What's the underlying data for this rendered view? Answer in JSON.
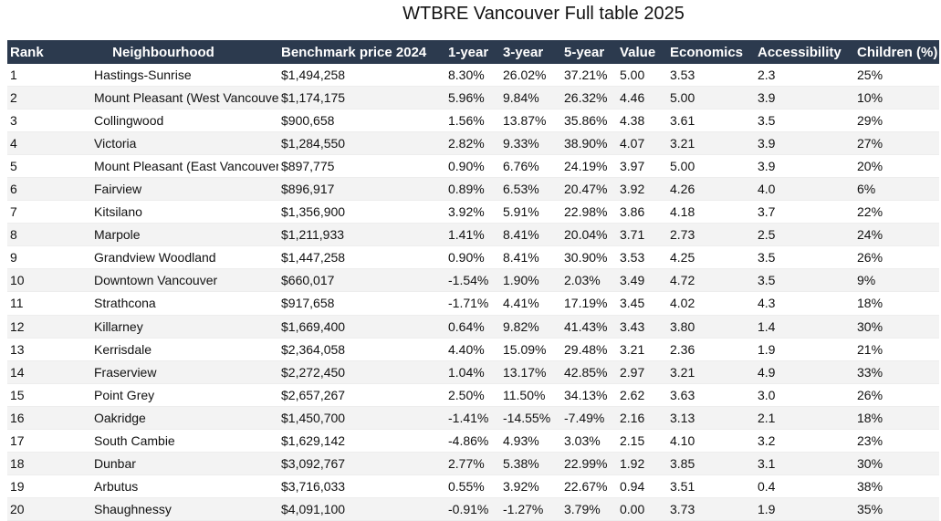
{
  "title": "WTBRE Vancouver Full table 2025",
  "columns": [
    "Rank",
    "Neighbourhood",
    "Benchmark price 2024",
    "1-year",
    "3-year",
    "5-year",
    "Value",
    "Economics",
    "Accessibility",
    "Children (%)"
  ],
  "rows": [
    [
      "1",
      "Hastings-Sunrise",
      "$1,494,258",
      "8.30%",
      "26.02%",
      "37.21%",
      "5.00",
      "3.53",
      "2.3",
      "25%"
    ],
    [
      "2",
      "Mount Pleasant (West Vancouver)",
      "$1,174,175",
      "5.96%",
      "9.84%",
      "26.32%",
      "4.46",
      "5.00",
      "3.9",
      "10%"
    ],
    [
      "3",
      "Collingwood",
      "$900,658",
      "1.56%",
      "13.87%",
      "35.86%",
      "4.38",
      "3.61",
      "3.5",
      "29%"
    ],
    [
      "4",
      "Victoria",
      "$1,284,550",
      "2.82%",
      "9.33%",
      "38.90%",
      "4.07",
      "3.21",
      "3.9",
      "27%"
    ],
    [
      "5",
      "Mount Pleasant (East Vancouver)",
      "$897,775",
      "0.90%",
      "6.76%",
      "24.19%",
      "3.97",
      "5.00",
      "3.9",
      "20%"
    ],
    [
      "6",
      "Fairview",
      "$896,917",
      "0.89%",
      "6.53%",
      "20.47%",
      "3.92",
      "4.26",
      "4.0",
      "6%"
    ],
    [
      "7",
      "Kitsilano",
      "$1,356,900",
      "3.92%",
      "5.91%",
      "22.98%",
      "3.86",
      "4.18",
      "3.7",
      "22%"
    ],
    [
      "8",
      "Marpole",
      "$1,211,933",
      "1.41%",
      "8.41%",
      "20.04%",
      "3.71",
      "2.73",
      "2.5",
      "24%"
    ],
    [
      "9",
      "Grandview Woodland",
      "$1,447,258",
      "0.90%",
      "8.41%",
      "30.90%",
      "3.53",
      "4.25",
      "3.5",
      "26%"
    ],
    [
      "10",
      "Downtown Vancouver",
      "$660,017",
      "-1.54%",
      "1.90%",
      "2.03%",
      "3.49",
      "4.72",
      "3.5",
      "9%"
    ],
    [
      "11",
      "Strathcona",
      "$917,658",
      "-1.71%",
      "4.41%",
      "17.19%",
      "3.45",
      "4.02",
      "4.3",
      "18%"
    ],
    [
      "12",
      "Killarney",
      "$1,669,400",
      "0.64%",
      "9.82%",
      "41.43%",
      "3.43",
      "3.80",
      "1.4",
      "30%"
    ],
    [
      "13",
      "Kerrisdale",
      "$2,364,058",
      "4.40%",
      "15.09%",
      "29.48%",
      "3.21",
      "2.36",
      "1.9",
      "21%"
    ],
    [
      "14",
      "Fraserview",
      "$2,272,450",
      "1.04%",
      "13.17%",
      "42.85%",
      "2.97",
      "3.21",
      "4.9",
      "33%"
    ],
    [
      "15",
      "Point Grey",
      "$2,657,267",
      "2.50%",
      "11.50%",
      "34.13%",
      "2.62",
      "3.63",
      "3.0",
      "26%"
    ],
    [
      "16",
      "Oakridge",
      "$1,450,700",
      "-1.41%",
      "-14.55%",
      "-7.49%",
      "2.16",
      "3.13",
      "2.1",
      "18%"
    ],
    [
      "17",
      "South Cambie",
      "$1,629,142",
      "-4.86%",
      "4.93%",
      "3.03%",
      "2.15",
      "4.10",
      "3.2",
      "23%"
    ],
    [
      "18",
      "Dunbar",
      "$3,092,767",
      "2.77%",
      "5.38%",
      "22.99%",
      "1.92",
      "3.85",
      "3.1",
      "30%"
    ],
    [
      "19",
      "Arbutus",
      "$3,716,033",
      "0.55%",
      "3.92%",
      "22.67%",
      "0.94",
      "3.51",
      "0.4",
      "38%"
    ],
    [
      "20",
      "Shaughnessy",
      "$4,091,100",
      "-0.91%",
      "-1.27%",
      "3.79%",
      "0.00",
      "3.73",
      "1.9",
      "35%"
    ]
  ]
}
